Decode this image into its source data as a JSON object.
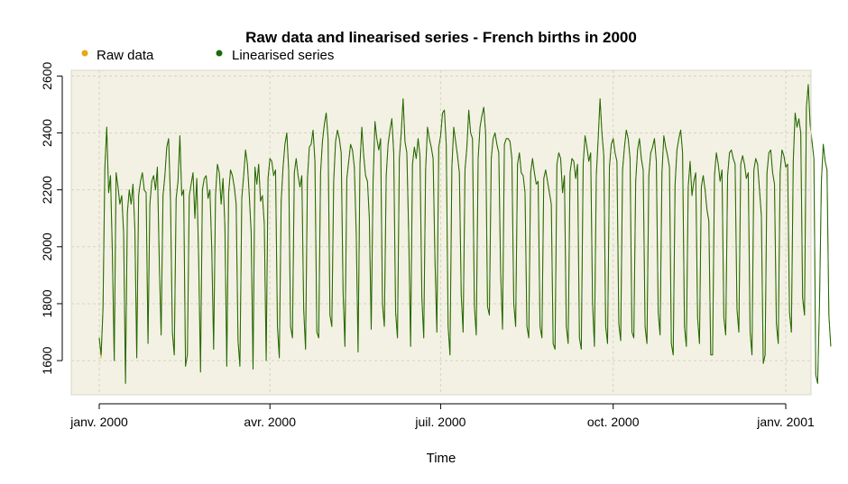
{
  "chart_data": {
    "type": "line",
    "title": "Raw data and linearised series - French births in 2000",
    "xlabel": "Time",
    "ylabel": "",
    "x_start": "2000-01-01",
    "x_end": "2001-01-01",
    "xlim": [
      "2000-01-01",
      "2001-01-01"
    ],
    "ylim": [
      1480,
      2620
    ],
    "x_ticks": [
      {
        "date": "2000-01-01",
        "label": "janv. 2000"
      },
      {
        "date": "2000-04-01",
        "label": "avr. 2000"
      },
      {
        "date": "2000-07-01",
        "label": "juil. 2000"
      },
      {
        "date": "2000-10-01",
        "label": "oct. 2000"
      },
      {
        "date": "2001-01-01",
        "label": "janv. 2001"
      }
    ],
    "y_ticks": [
      1600,
      1800,
      2000,
      2200,
      2400,
      2600
    ],
    "grid": true,
    "legend_position": "top-left",
    "background_color": "#f3f1e4",
    "series": [
      {
        "name": "Raw data",
        "color": "#e6a817",
        "values": [
          1680,
          1610,
          1780,
          2280,
          2420,
          2190,
          2250,
          1980,
          1600,
          2260,
          2210,
          2150,
          2180,
          2050,
          1520,
          2120,
          2200,
          2150,
          2220,
          2060,
          1610,
          2180,
          2230,
          2260,
          2200,
          2190,
          1660,
          2150,
          2230,
          2250,
          2200,
          2280,
          1950,
          1690,
          2180,
          2250,
          2350,
          2380,
          2160,
          1700,
          1620,
          2170,
          2230,
          2390,
          2180,
          2200,
          1580,
          1620,
          2180,
          2220,
          2260,
          2100,
          2240,
          1960,
          1560,
          2200,
          2240,
          2250,
          2170,
          2200,
          1990,
          1640,
          2180,
          2290,
          2260,
          2150,
          2240,
          2070,
          1580,
          2190,
          2270,
          2250,
          2210,
          2150,
          1670,
          1580,
          2170,
          2250,
          2340,
          2290,
          2180,
          2050,
          1570,
          2280,
          2220,
          2290,
          2160,
          2180,
          2080,
          1600,
          2240,
          2310,
          2300,
          2250,
          2270,
          1720,
          1610,
          2160,
          2280,
          2360,
          2400,
          2270,
          1720,
          1680,
          2260,
          2310,
          2250,
          2210,
          2250,
          1780,
          1640,
          2240,
          2350,
          2360,
          2410,
          2300,
          1700,
          1680,
          2260,
          2370,
          2430,
          2470,
          2380,
          1760,
          1720,
          2230,
          2370,
          2410,
          2380,
          2330,
          1840,
          1650,
          2240,
          2300,
          2360,
          2340,
          2280,
          2050,
          1630,
          2290,
          2420,
          2320,
          2250,
          2230,
          2100,
          1710,
          2230,
          2440,
          2380,
          2340,
          2380,
          1800,
          1720,
          2250,
          2360,
          2410,
          2450,
          2330,
          1770,
          1680,
          2310,
          2400,
          2520,
          2370,
          2330,
          2040,
          1650,
          2290,
          2350,
          2310,
          2380,
          2320,
          1820,
          1680,
          2270,
          2420,
          2380,
          2350,
          2310,
          1950,
          1700,
          2350,
          2390,
          2470,
          2480,
          2360,
          1720,
          1620,
          2280,
          2420,
          2370,
          2320,
          2260,
          1830,
          1700,
          2270,
          2350,
          2480,
          2400,
          2380,
          1790,
          1690,
          2310,
          2420,
          2460,
          2490,
          2400,
          1790,
          1760,
          2310,
          2380,
          2400,
          2360,
          2330,
          1910,
          1710,
          2360,
          2380,
          2380,
          2370,
          2310,
          1800,
          1720,
          2290,
          2330,
          2260,
          2250,
          2190,
          1720,
          1680,
          2260,
          2310,
          2260,
          2220,
          2230,
          1720,
          1680,
          2240,
          2270,
          2230,
          2190,
          2150,
          1660,
          1640,
          2290,
          2330,
          2310,
          2190,
          2250,
          1720,
          1660,
          2260,
          2310,
          2300,
          2240,
          2290,
          1680,
          1640,
          2290,
          2390,
          2350,
          2300,
          2330,
          1800,
          1650,
          2250,
          2380,
          2520,
          2400,
          2320,
          1720,
          1660,
          2280,
          2360,
          2380,
          2330,
          2300,
          1730,
          1670,
          2270,
          2350,
          2410,
          2380,
          2310,
          1700,
          1680,
          2230,
          2340,
          2380,
          2310,
          2270,
          1720,
          1660,
          2250,
          2330,
          2350,
          2380,
          2300,
          1770,
          1690,
          2260,
          2390,
          2350,
          2320,
          2280,
          1660,
          1620,
          2220,
          2340,
          2380,
          2410,
          2330,
          1720,
          1650,
          2210,
          2300,
          2180,
          2230,
          2260,
          1750,
          1660,
          2210,
          2250,
          2200,
          2130,
          2090,
          1620,
          1620,
          2250,
          2330,
          2290,
          2230,
          2270,
          1750,
          1690,
          2250,
          2330,
          2340,
          2310,
          2290,
          1780,
          1700,
          2290,
          2320,
          2290,
          2240,
          2260,
          1700,
          1620,
          2270,
          2310,
          2290,
          2200,
          2110,
          1590,
          1620,
          2260,
          2330,
          2340,
          2260,
          2220,
          1730,
          1660,
          2260,
          2340,
          2320,
          2280,
          2290,
          1770,
          1700,
          2300,
          2470,
          2420,
          2450,
          2400,
          1820,
          1760,
          2490,
          2570,
          2430,
          2370,
          2310,
          1550,
          1520,
          1800,
          2230,
          2360,
          2300,
          2270,
          1760,
          1650
        ]
      },
      {
        "name": "Linearised series",
        "color": "#1a6a0c",
        "values": [
          1680,
          1620,
          1780,
          2280,
          2420,
          2190,
          2250,
          1980,
          1600,
          2260,
          2210,
          2150,
          2180,
          2050,
          1520,
          2120,
          2200,
          2150,
          2220,
          2060,
          1610,
          2180,
          2230,
          2260,
          2200,
          2190,
          1660,
          2150,
          2230,
          2250,
          2200,
          2280,
          1950,
          1690,
          2180,
          2250,
          2350,
          2380,
          2160,
          1700,
          1620,
          2170,
          2230,
          2390,
          2180,
          2200,
          1580,
          1620,
          2180,
          2220,
          2260,
          2100,
          2240,
          1960,
          1560,
          2200,
          2240,
          2250,
          2170,
          2200,
          1990,
          1640,
          2180,
          2290,
          2260,
          2150,
          2240,
          2070,
          1580,
          2190,
          2270,
          2250,
          2210,
          2150,
          1670,
          1580,
          2170,
          2250,
          2340,
          2290,
          2180,
          2050,
          1570,
          2280,
          2220,
          2290,
          2160,
          2180,
          2080,
          1600,
          2240,
          2310,
          2300,
          2250,
          2270,
          1720,
          1610,
          2160,
          2280,
          2360,
          2400,
          2270,
          1720,
          1680,
          2260,
          2310,
          2250,
          2210,
          2250,
          1780,
          1640,
          2240,
          2350,
          2360,
          2410,
          2300,
          1700,
          1680,
          2260,
          2370,
          2430,
          2470,
          2380,
          1760,
          1720,
          2230,
          2370,
          2410,
          2380,
          2330,
          1840,
          1650,
          2240,
          2300,
          2360,
          2340,
          2280,
          2050,
          1630,
          2290,
          2420,
          2320,
          2250,
          2230,
          2100,
          1710,
          2230,
          2440,
          2380,
          2340,
          2380,
          1800,
          1720,
          2250,
          2360,
          2410,
          2450,
          2330,
          1770,
          1680,
          2310,
          2400,
          2520,
          2370,
          2330,
          2040,
          1650,
          2290,
          2350,
          2310,
          2380,
          2320,
          1820,
          1680,
          2270,
          2420,
          2380,
          2350,
          2310,
          1950,
          1700,
          2350,
          2390,
          2470,
          2480,
          2360,
          1720,
          1620,
          2280,
          2420,
          2370,
          2320,
          2260,
          1830,
          1700,
          2270,
          2350,
          2480,
          2400,
          2380,
          1790,
          1690,
          2310,
          2420,
          2460,
          2490,
          2400,
          1790,
          1760,
          2310,
          2380,
          2400,
          2360,
          2330,
          1910,
          1710,
          2360,
          2380,
          2380,
          2370,
          2310,
          1800,
          1720,
          2290,
          2330,
          2260,
          2250,
          2190,
          1720,
          1680,
          2260,
          2310,
          2260,
          2220,
          2230,
          1720,
          1680,
          2240,
          2270,
          2230,
          2190,
          2150,
          1660,
          1640,
          2290,
          2330,
          2310,
          2190,
          2250,
          1720,
          1660,
          2260,
          2310,
          2300,
          2240,
          2290,
          1680,
          1640,
          2290,
          2390,
          2350,
          2300,
          2330,
          1800,
          1650,
          2250,
          2380,
          2520,
          2400,
          2320,
          1720,
          1660,
          2280,
          2360,
          2380,
          2330,
          2300,
          1730,
          1670,
          2270,
          2350,
          2410,
          2380,
          2310,
          1700,
          1680,
          2230,
          2340,
          2380,
          2310,
          2270,
          1720,
          1660,
          2250,
          2330,
          2350,
          2380,
          2300,
          1770,
          1690,
          2260,
          2390,
          2350,
          2320,
          2280,
          1660,
          1620,
          2220,
          2340,
          2380,
          2410,
          2330,
          1720,
          1650,
          2210,
          2300,
          2180,
          2230,
          2260,
          1750,
          1660,
          2210,
          2250,
          2200,
          2130,
          2090,
          1620,
          1620,
          2250,
          2330,
          2290,
          2230,
          2270,
          1750,
          1690,
          2250,
          2330,
          2340,
          2310,
          2290,
          1780,
          1700,
          2290,
          2320,
          2290,
          2240,
          2260,
          1700,
          1620,
          2270,
          2310,
          2290,
          2200,
          2110,
          1590,
          1620,
          2260,
          2330,
          2340,
          2260,
          2220,
          1730,
          1660,
          2260,
          2340,
          2320,
          2280,
          2290,
          1770,
          1700,
          2300,
          2470,
          2420,
          2450,
          2400,
          1820,
          1760,
          2490,
          2570,
          2430,
          2370,
          2310,
          1550,
          1520,
          1800,
          2230,
          2360,
          2300,
          2270,
          1760,
          1650
        ]
      }
    ]
  }
}
